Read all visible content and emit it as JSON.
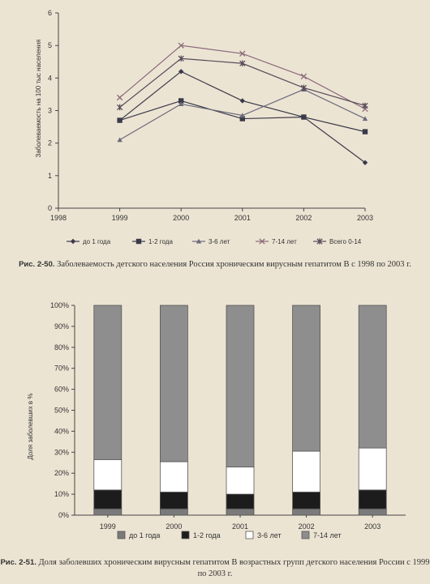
{
  "chart_data": [
    {
      "type": "line",
      "ylabel": "Заболеваемость на 100 тыс населения",
      "xlabel": "",
      "x": [
        "1998",
        "1999",
        "2000",
        "2001",
        "2002",
        "2003"
      ],
      "ylim": [
        0,
        6
      ],
      "yticks": [
        "0",
        "1",
        "2",
        "3",
        "4",
        "5",
        "6"
      ],
      "legend_position": "bottom",
      "series": [
        {
          "name": "до 1 года",
          "marker": "diamond",
          "color": "#3a3a4a",
          "values": [
            null,
            2.7,
            4.2,
            3.3,
            2.8,
            1.4
          ]
        },
        {
          "name": "1-2 года",
          "marker": "square",
          "color": "#3a3a4a",
          "values": [
            null,
            2.7,
            3.3,
            2.75,
            2.8,
            2.35
          ]
        },
        {
          "name": "3-6 лет",
          "marker": "triangle",
          "color": "#6a6a7a",
          "values": [
            null,
            2.1,
            3.2,
            2.85,
            3.65,
            2.75
          ]
        },
        {
          "name": "7-14 лет",
          "marker": "x",
          "color": "#8a6a7a",
          "values": [
            null,
            3.4,
            5.0,
            4.75,
            4.05,
            3.05
          ]
        },
        {
          "name": "Всего 0-14",
          "marker": "star",
          "color": "#5a4a5a",
          "values": [
            null,
            3.1,
            4.6,
            4.45,
            3.7,
            3.15
          ]
        }
      ]
    },
    {
      "type": "bar",
      "stacked": true,
      "ylabel": "Доля заболевших в %",
      "xlabel": "",
      "categories": [
        "1999",
        "2000",
        "2001",
        "2002",
        "2003"
      ],
      "ylim": [
        0,
        100
      ],
      "yticks": [
        "0%",
        "10%",
        "20%",
        "30%",
        "40%",
        "50%",
        "60%",
        "70%",
        "80%",
        "90%",
        "100%"
      ],
      "legend_position": "bottom",
      "series": [
        {
          "name": "до 1 года",
          "color": "#7a7a7a",
          "values": [
            3,
            3,
            3,
            3,
            3
          ]
        },
        {
          "name": "1-2 года",
          "color": "#1c1c1c",
          "values": [
            9,
            8,
            7,
            8,
            9
          ]
        },
        {
          "name": "3-6 лет",
          "color": "#ffffff",
          "values": [
            14.5,
            14.5,
            13,
            19.5,
            20
          ]
        },
        {
          "name": "7-14 лет",
          "color": "#8e8e8e",
          "values": [
            73.5,
            74.5,
            77,
            69.5,
            68
          ]
        }
      ]
    }
  ],
  "captions": {
    "fig1_label": "Рис. 2-50.",
    "fig1_text": "Заболеваемость детского населения Россия хроническим вирусным гепатитом В с 1998 по 2003 г.",
    "fig2_label": "Рис. 2-51.",
    "fig2_text": "Доля заболевших хроническим вирусным гепатитом В возрастных групп детского населения России с 1999 по 2003 г."
  }
}
